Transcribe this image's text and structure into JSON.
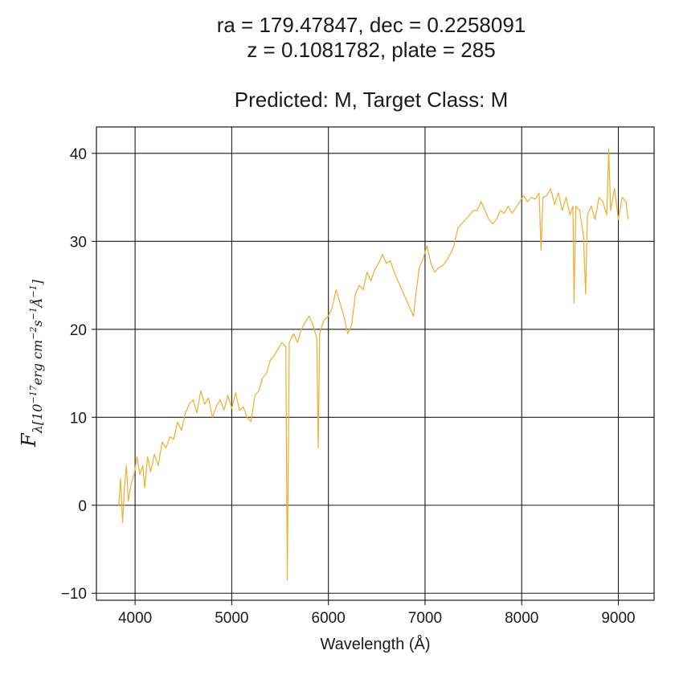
{
  "title": {
    "line1": "ra = 179.47847, dec = 0.2258091",
    "line2": "z = 0.1081782, plate = 285",
    "line3": "Predicted: M, Target Class: M"
  },
  "chart_data": {
    "type": "line",
    "title": "Predicted: M, Target Class: M",
    "xlabel": "Wavelength (Å)",
    "ylabel": {
      "main": "F",
      "sub": "λ[10",
      "exp1": "−17",
      "mid1": "erg cm",
      "exp2": "−2",
      "mid2": "s",
      "exp3": "−1",
      "mid3": "Å",
      "exp4": "−1",
      "end": "]"
    },
    "xlim": [
      3600,
      9370
    ],
    "ylim": [
      -10.8,
      43
    ],
    "xticks": [
      4000,
      5000,
      6000,
      7000,
      8000,
      9000
    ],
    "yticks": [
      -10,
      0,
      10,
      20,
      30,
      40
    ],
    "grid": true,
    "line_color": "#f0ad32",
    "series": [
      {
        "points": [
          [
            3830,
            0.0
          ],
          [
            3850,
            3.0
          ],
          [
            3870,
            -2.0
          ],
          [
            3890,
            2.0
          ],
          [
            3910,
            4.5
          ],
          [
            3930,
            0.5
          ],
          [
            3960,
            2.5
          ],
          [
            3990,
            3.5
          ],
          [
            4020,
            5.5
          ],
          [
            4050,
            3.5
          ],
          [
            4080,
            4.5
          ],
          [
            4100,
            2.0
          ],
          [
            4130,
            5.5
          ],
          [
            4160,
            3.8
          ],
          [
            4200,
            5.8
          ],
          [
            4240,
            4.5
          ],
          [
            4280,
            7.2
          ],
          [
            4320,
            6.5
          ],
          [
            4360,
            7.8
          ],
          [
            4400,
            7.5
          ],
          [
            4440,
            9.5
          ],
          [
            4480,
            8.5
          ],
          [
            4520,
            10.5
          ],
          [
            4560,
            11.5
          ],
          [
            4600,
            12.0
          ],
          [
            4640,
            10.5
          ],
          [
            4680,
            13.0
          ],
          [
            4720,
            11.5
          ],
          [
            4760,
            12.2
          ],
          [
            4800,
            10.0
          ],
          [
            4840,
            11.2
          ],
          [
            4880,
            12.0
          ],
          [
            4920,
            10.8
          ],
          [
            4960,
            12.5
          ],
          [
            5000,
            11.0
          ],
          [
            5040,
            12.8
          ],
          [
            5080,
            10.8
          ],
          [
            5120,
            11.2
          ],
          [
            5160,
            10.0
          ],
          [
            5200,
            9.5
          ],
          [
            5240,
            12.5
          ],
          [
            5280,
            13.0
          ],
          [
            5320,
            14.5
          ],
          [
            5360,
            15.0
          ],
          [
            5400,
            16.5
          ],
          [
            5440,
            17.0
          ],
          [
            5480,
            17.8
          ],
          [
            5520,
            18.5
          ],
          [
            5560,
            18.0
          ],
          [
            5575,
            -8.5
          ],
          [
            5595,
            18.5
          ],
          [
            5640,
            19.5
          ],
          [
            5680,
            18.5
          ],
          [
            5720,
            20.0
          ],
          [
            5760,
            20.8
          ],
          [
            5800,
            21.5
          ],
          [
            5840,
            20.5
          ],
          [
            5880,
            19.0
          ],
          [
            5895,
            6.5
          ],
          [
            5910,
            19.5
          ],
          [
            5950,
            21.0
          ],
          [
            6000,
            21.5
          ],
          [
            6040,
            22.5
          ],
          [
            6080,
            24.5
          ],
          [
            6120,
            23.0
          ],
          [
            6160,
            21.5
          ],
          [
            6200,
            19.5
          ],
          [
            6240,
            20.5
          ],
          [
            6280,
            24.0
          ],
          [
            6320,
            25.0
          ],
          [
            6360,
            24.5
          ],
          [
            6400,
            26.5
          ],
          [
            6440,
            25.5
          ],
          [
            6480,
            26.8
          ],
          [
            6520,
            27.5
          ],
          [
            6560,
            28.5
          ],
          [
            6600,
            27.5
          ],
          [
            6640,
            27.8
          ],
          [
            6680,
            26.5
          ],
          [
            6720,
            25.5
          ],
          [
            6760,
            24.5
          ],
          [
            6800,
            23.5
          ],
          [
            6840,
            22.5
          ],
          [
            6880,
            21.5
          ],
          [
            6900,
            23.5
          ],
          [
            6940,
            27.0
          ],
          [
            6980,
            28.0
          ],
          [
            7020,
            29.5
          ],
          [
            7060,
            27.5
          ],
          [
            7100,
            26.5
          ],
          [
            7140,
            27.0
          ],
          [
            7180,
            27.2
          ],
          [
            7220,
            27.8
          ],
          [
            7260,
            28.5
          ],
          [
            7300,
            29.5
          ],
          [
            7340,
            31.5
          ],
          [
            7380,
            32.0
          ],
          [
            7420,
            32.5
          ],
          [
            7460,
            33.0
          ],
          [
            7500,
            33.5
          ],
          [
            7540,
            33.5
          ],
          [
            7580,
            34.5
          ],
          [
            7620,
            33.5
          ],
          [
            7660,
            32.5
          ],
          [
            7700,
            32.0
          ],
          [
            7740,
            32.5
          ],
          [
            7780,
            33.5
          ],
          [
            7820,
            33.2
          ],
          [
            7860,
            34.0
          ],
          [
            7900,
            33.2
          ],
          [
            7940,
            33.8
          ],
          [
            7980,
            34.5
          ],
          [
            8020,
            35.2
          ],
          [
            8060,
            34.5
          ],
          [
            8100,
            35.0
          ],
          [
            8140,
            34.8
          ],
          [
            8180,
            35.5
          ],
          [
            8200,
            29.0
          ],
          [
            8220,
            35.0
          ],
          [
            8260,
            35.2
          ],
          [
            8300,
            36.0
          ],
          [
            8340,
            34.2
          ],
          [
            8380,
            35.5
          ],
          [
            8420,
            33.5
          ],
          [
            8460,
            35.0
          ],
          [
            8500,
            33.0
          ],
          [
            8530,
            34.0
          ],
          [
            8542,
            23.0
          ],
          [
            8560,
            34.0
          ],
          [
            8600,
            33.5
          ],
          [
            8640,
            30.5
          ],
          [
            8662,
            24.0
          ],
          [
            8680,
            33.0
          ],
          [
            8720,
            34.0
          ],
          [
            8760,
            32.5
          ],
          [
            8800,
            35.0
          ],
          [
            8840,
            34.5
          ],
          [
            8880,
            33.0
          ],
          [
            8900,
            40.5
          ],
          [
            8920,
            33.5
          ],
          [
            8960,
            36.0
          ],
          [
            9000,
            32.5
          ],
          [
            9040,
            35.0
          ],
          [
            9080,
            34.5
          ],
          [
            9100,
            32.5
          ]
        ]
      }
    ]
  }
}
